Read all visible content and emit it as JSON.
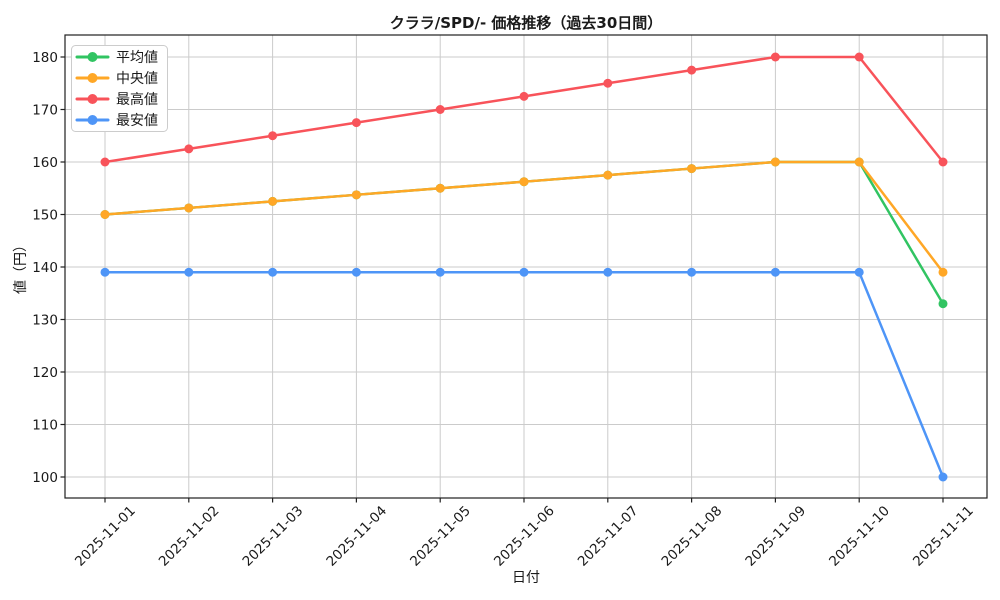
{
  "title": "クララ/SPD/- 価格推移（過去30日間）",
  "colors": {
    "background": "#FFFFFF",
    "grid": "#CBCBCB",
    "spine": "#1F1F1F",
    "text": "#1A1A1A",
    "legend_border": "#CCCCCC"
  },
  "legend": {
    "position": "upper-left",
    "items": [
      "平均値",
      "中央値",
      "最高値",
      "最安値"
    ]
  },
  "chart_data": {
    "type": "line",
    "title": "クララ/SPD/- 価格推移（過去30日間）",
    "xlabel": "日付",
    "ylabel": "値（円）",
    "grid": true,
    "legend_position": "upper-left",
    "categories": [
      "2025-11-01",
      "2025-11-02",
      "2025-11-03",
      "2025-11-04",
      "2025-11-05",
      "2025-11-06",
      "2025-11-07",
      "2025-11-08",
      "2025-11-09",
      "2025-11-10",
      "2025-11-11"
    ],
    "yticks": [
      100,
      110,
      120,
      130,
      140,
      150,
      160,
      170,
      180
    ],
    "ylim": [
      96,
      184.2
    ],
    "series": [
      {
        "id": "average",
        "name": "平均値",
        "color": "#31C462",
        "marker": "circle",
        "values": [
          150,
          151.25,
          152.5,
          153.75,
          155,
          156.25,
          157.5,
          158.75,
          160,
          160,
          133
        ]
      },
      {
        "id": "median",
        "name": "中央値",
        "color": "#FFA726",
        "marker": "circle",
        "values": [
          150,
          151.25,
          152.5,
          153.75,
          155,
          156.25,
          157.5,
          158.75,
          160,
          160,
          139
        ]
      },
      {
        "id": "max",
        "name": "最高値",
        "color": "#F8535A",
        "marker": "circle",
        "values": [
          160,
          162.5,
          165,
          167.5,
          170,
          172.5,
          175,
          177.5,
          180,
          180,
          160
        ]
      },
      {
        "id": "min",
        "name": "最安値",
        "color": "#4E95F7",
        "marker": "circle",
        "values": [
          139,
          139,
          139,
          139,
          139,
          139,
          139,
          139,
          139,
          139,
          100
        ]
      }
    ]
  }
}
